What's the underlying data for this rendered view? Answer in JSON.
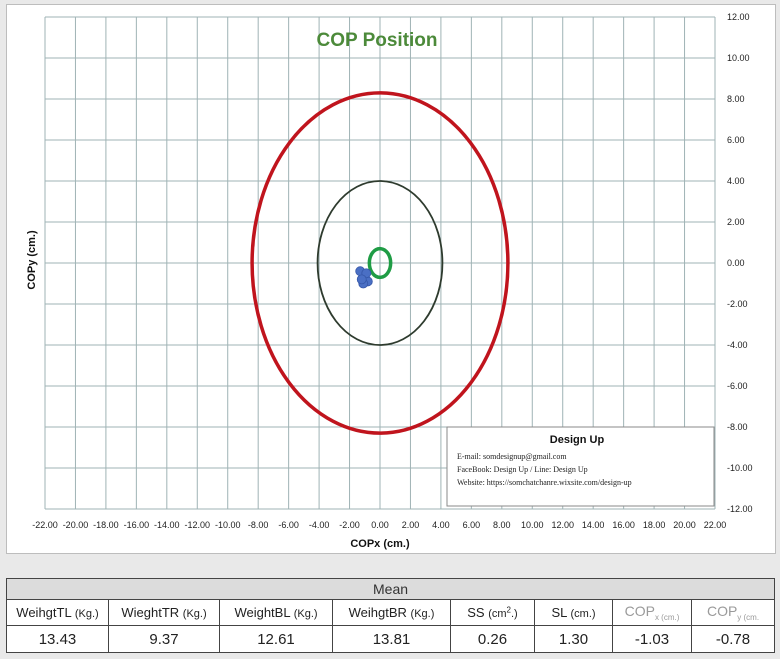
{
  "chart_data": {
    "type": "scatter",
    "title": "COP Position",
    "title_color": "#4c8a3a",
    "xlabel": "COPx (cm.)",
    "ylabel": "COPy (cm.)",
    "xlim": [
      -22,
      22
    ],
    "ylim": [
      -12,
      12
    ],
    "x_ticks": [
      "-22.00",
      "-20.00",
      "-18.00",
      "-16.00",
      "-14.00",
      "-12.00",
      "-10.00",
      "-8.00",
      "-6.00",
      "-4.00",
      "-2.00",
      "0.00",
      "2.00",
      "4.00",
      "6.00",
      "8.00",
      "10.00",
      "12.00",
      "14.00",
      "16.00",
      "18.00",
      "20.00",
      "22.00"
    ],
    "y_ticks": [
      "12.00",
      "10.00",
      "8.00",
      "6.00",
      "4.00",
      "2.00",
      "0.00",
      "-2.00",
      "-4.00",
      "-6.00",
      "-8.00",
      "-10.00",
      "-12.00"
    ],
    "grid": true,
    "grid_color": "#9fb3b5",
    "ellipses": [
      {
        "cx": 0,
        "cy": 0,
        "rx": 8.4,
        "ry": 8.3,
        "color": "#c0141d",
        "stroke": "thick"
      },
      {
        "cx": 0,
        "cy": 0,
        "rx": 4.1,
        "ry": 4.0,
        "color": "#2e3b2e",
        "stroke": "thin"
      },
      {
        "cx": 0,
        "cy": 0,
        "rx": 0.7,
        "ry": 0.7,
        "color": "#1f9c45",
        "stroke": "thick"
      }
    ],
    "points": [
      {
        "x": -1.0,
        "y": -0.6
      },
      {
        "x": -1.3,
        "y": -0.4
      },
      {
        "x": -0.8,
        "y": -0.9
      },
      {
        "x": -1.1,
        "y": -1.0
      },
      {
        "x": -0.9,
        "y": -0.5
      },
      {
        "x": -1.2,
        "y": -0.8
      }
    ],
    "point_color": "#4a6fc4"
  },
  "info_box": {
    "title": "Design Up",
    "lines": [
      "E-mail: somdesignup@gmail.com",
      "FaceBook: Design Up  /  Line: Design Up",
      "Website:  https://somchatchanre.wixsite.com/design-up"
    ]
  },
  "table": {
    "group_header": "Mean",
    "headers": [
      {
        "main": "WeihgtTL",
        "unit": "(Kg.)"
      },
      {
        "main": "WieghtTR",
        "unit": "(Kg.)"
      },
      {
        "main": "WeightBL",
        "unit": "(Kg.)"
      },
      {
        "main": "WeihgtBR",
        "unit": "(Kg.)"
      },
      {
        "main": "SS",
        "unit": "(cm",
        "sup": "2",
        "tail": ".)"
      },
      {
        "main": "SL",
        "unit": "(cm.)"
      },
      {
        "main": "COP",
        "sub": "x (cm.)"
      },
      {
        "main": "COP",
        "sub": "y (cm."
      }
    ],
    "values": [
      "13.43",
      "9.37",
      "12.61",
      "13.81",
      "0.26",
      "1.30",
      "-1.03",
      "-0.78"
    ]
  }
}
